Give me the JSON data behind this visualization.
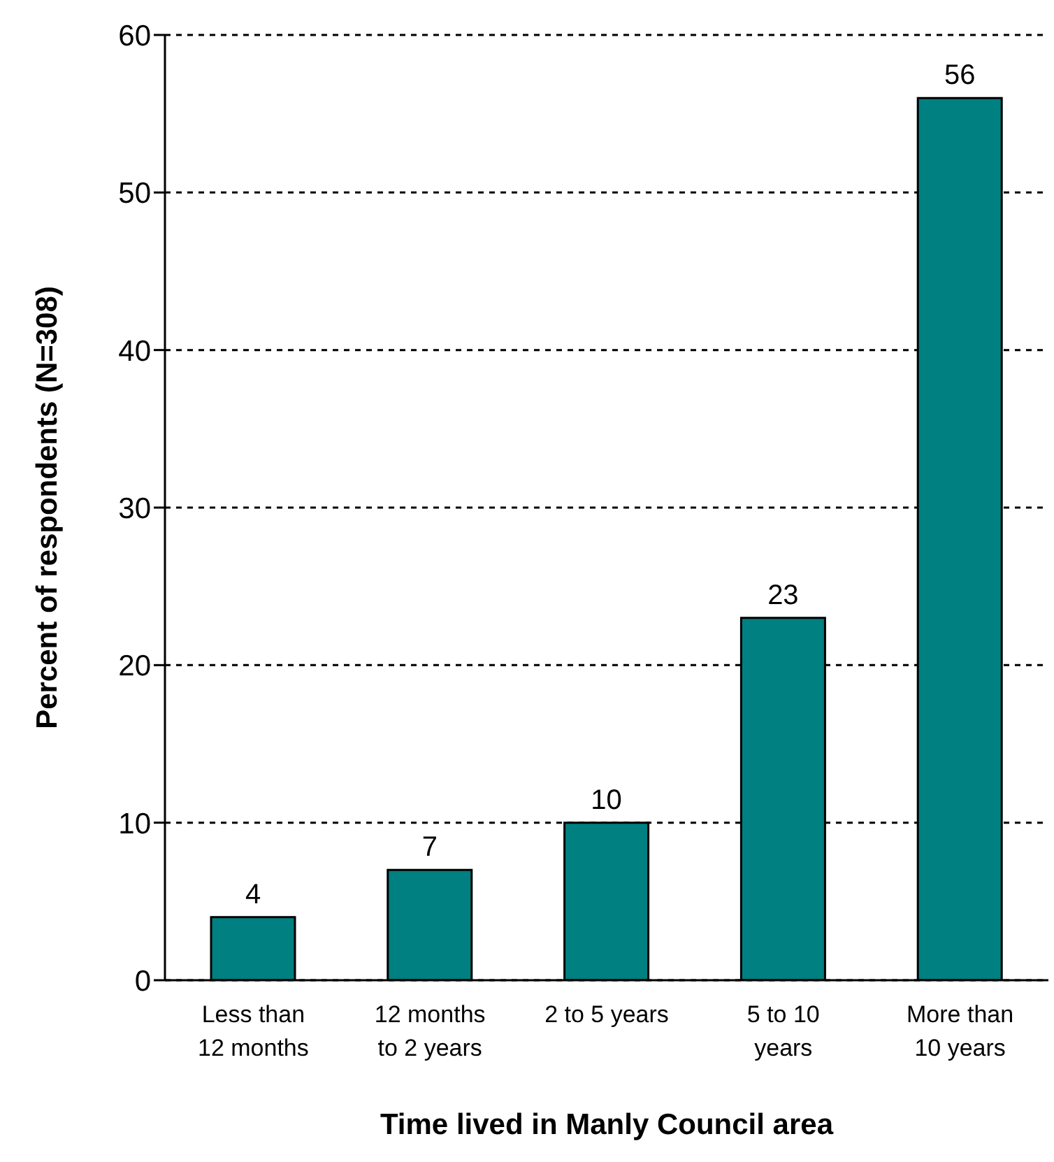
{
  "chart_data": {
    "type": "bar",
    "xlabel": "Time lived in Manly Council area",
    "ylabel": "Percent of respondents (N=308)",
    "categories": [
      "Less than\n12 months",
      "12 months\nto 2 years",
      "2 to 5 years",
      "5 to 10\nyears",
      "More than\n10 years"
    ],
    "values": [
      4,
      7,
      10,
      23,
      56
    ],
    "color": "#008080",
    "ylim": [
      0,
      60
    ],
    "yticks": [
      0,
      10,
      20,
      30,
      40,
      50,
      60
    ],
    "grid": "y",
    "data_labels": true
  }
}
